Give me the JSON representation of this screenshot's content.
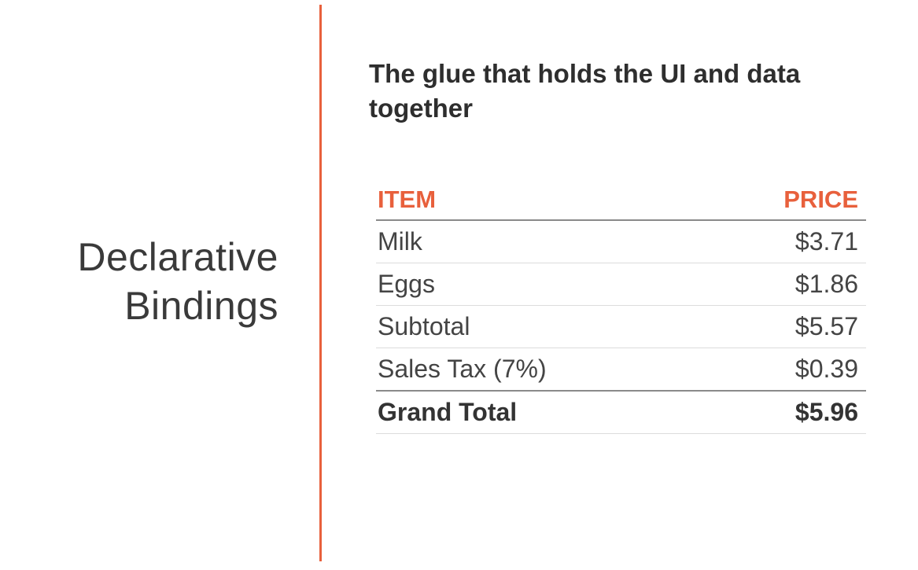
{
  "slide": {
    "title_line1": "Declarative",
    "title_line2": "Bindings",
    "subtitle": "The glue that holds the UI and data together",
    "accent_color": "#e8603c"
  },
  "table": {
    "headers": {
      "item": "ITEM",
      "price": "PRICE"
    },
    "rows": [
      {
        "item": "Milk",
        "price": "$3.71"
      },
      {
        "item": "Eggs",
        "price": "$1.86"
      },
      {
        "item": "Subtotal",
        "price": "$5.57"
      },
      {
        "item": "Sales Tax (7%)",
        "price": "$0.39"
      }
    ],
    "total": {
      "item": "Grand Total",
      "price": "$5.96"
    }
  }
}
